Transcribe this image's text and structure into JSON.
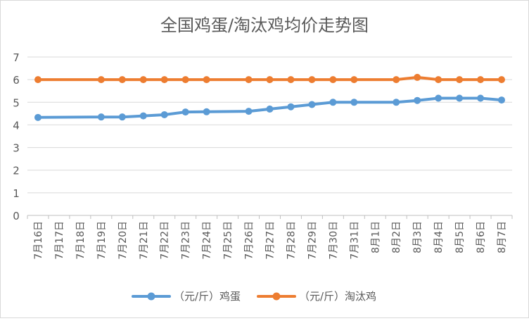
{
  "chart_data": {
    "type": "line",
    "title": "全国鸡蛋/淘汰鸡均价走势图",
    "categories": [
      "7月16日",
      "7月17日",
      "7月18日",
      "7月19日",
      "7月20日",
      "7月21日",
      "7月22日",
      "7月23日",
      "7月24日",
      "7月25日",
      "7月26日",
      "7月27日",
      "7月28日",
      "7月29日",
      "7月30日",
      "7月31日",
      "8月1日",
      "8月2日",
      "8月3日",
      "8月4日",
      "8月5日",
      "8月6日",
      "8月7日"
    ],
    "y_ticks": [
      "0",
      "1",
      "2",
      "3",
      "4",
      "5",
      "6",
      "7"
    ],
    "ylim": [
      0,
      7
    ],
    "grid": true,
    "legend_position": "bottom",
    "series": [
      {
        "name": "（元/斤）鸡蛋",
        "color": "#5b9bd5",
        "values": [
          4.33,
          null,
          null,
          4.35,
          4.35,
          4.4,
          4.45,
          4.57,
          4.58,
          null,
          4.6,
          4.7,
          4.8,
          4.9,
          5.0,
          5.0,
          null,
          5.0,
          5.08,
          5.18,
          5.18,
          5.18,
          5.1
        ]
      },
      {
        "name": "（元/斤）淘汰鸡",
        "color": "#ed7d31",
        "values": [
          6.0,
          null,
          null,
          6.0,
          6.0,
          6.0,
          6.0,
          6.0,
          6.0,
          null,
          6.0,
          6.0,
          6.0,
          6.0,
          6.0,
          6.0,
          null,
          6.0,
          6.1,
          6.0,
          6.0,
          6.0,
          6.0
        ]
      }
    ]
  }
}
